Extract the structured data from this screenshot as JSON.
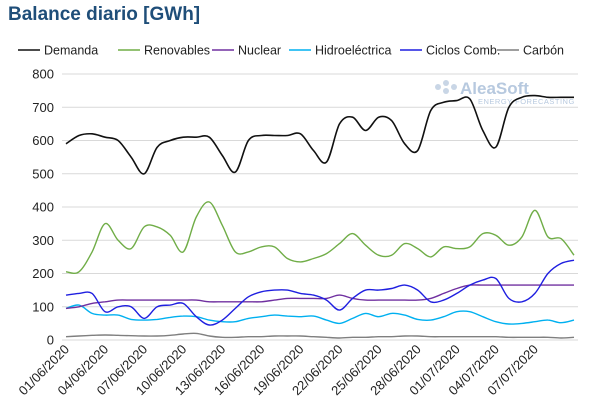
{
  "chart_data": {
    "type": "line",
    "title": "Balance diario [GWh]",
    "xlabel": "",
    "ylabel": "",
    "ylim": [
      0,
      800
    ],
    "yticks": [
      0,
      100,
      200,
      300,
      400,
      500,
      600,
      700,
      800
    ],
    "grid": true,
    "legend_position": "top",
    "x": [
      "01/06/2020",
      "02/06/2020",
      "03/06/2020",
      "04/06/2020",
      "05/06/2020",
      "06/06/2020",
      "07/06/2020",
      "08/06/2020",
      "09/06/2020",
      "10/06/2020",
      "11/06/2020",
      "12/06/2020",
      "13/06/2020",
      "14/06/2020",
      "15/06/2020",
      "16/06/2020",
      "17/06/2020",
      "18/06/2020",
      "19/06/2020",
      "20/06/2020",
      "21/06/2020",
      "22/06/2020",
      "23/06/2020",
      "24/06/2020",
      "25/06/2020",
      "26/06/2020",
      "27/06/2020",
      "28/06/2020",
      "29/06/2020",
      "30/06/2020",
      "01/07/2020",
      "02/07/2020",
      "03/07/2020",
      "04/07/2020",
      "05/07/2020",
      "06/07/2020",
      "07/07/2020",
      "08/07/2020",
      "09/07/2020",
      "10/07/2020"
    ],
    "x_tick_labels": [
      "01/06/2020",
      "04/06/2020",
      "07/06/2020",
      "10/06/2020",
      "13/06/2020",
      "16/06/2020",
      "19/06/2020",
      "22/06/2020",
      "25/06/2020",
      "28/06/2020",
      "01/07/2020",
      "04/07/2020",
      "07/07/2020"
    ],
    "series": [
      {
        "name": "Demanda",
        "color": "#111111",
        "values": [
          590,
          615,
          620,
          610,
          600,
          550,
          500,
          580,
          600,
          610,
          610,
          610,
          555,
          505,
          600,
          615,
          615,
          615,
          620,
          570,
          535,
          650,
          670,
          630,
          670,
          660,
          590,
          570,
          690,
          715,
          720,
          725,
          630,
          580,
          700,
          730,
          735,
          730,
          730,
          730
        ]
      },
      {
        "name": "Renovables",
        "color": "#70ad47",
        "values": [
          205,
          205,
          265,
          350,
          300,
          275,
          340,
          340,
          315,
          265,
          370,
          415,
          345,
          265,
          265,
          280,
          280,
          245,
          235,
          245,
          260,
          290,
          320,
          285,
          255,
          255,
          290,
          275,
          250,
          280,
          275,
          280,
          320,
          315,
          285,
          310,
          390,
          310,
          305,
          255
        ]
      },
      {
        "name": "Nuclear",
        "color": "#7030a0",
        "values": [
          95,
          100,
          110,
          115,
          120,
          120,
          120,
          120,
          120,
          120,
          120,
          115,
          115,
          115,
          115,
          115,
          120,
          125,
          125,
          125,
          125,
          135,
          125,
          120,
          120,
          120,
          120,
          120,
          125,
          140,
          155,
          165,
          165,
          165,
          165,
          165,
          165,
          165,
          165,
          165
        ]
      },
      {
        "name": "Hidroeléctrica",
        "color": "#00b0f0",
        "values": [
          95,
          105,
          80,
          75,
          75,
          62,
          60,
          62,
          68,
          72,
          70,
          60,
          55,
          55,
          65,
          70,
          75,
          72,
          70,
          72,
          60,
          50,
          65,
          80,
          70,
          80,
          75,
          62,
          60,
          70,
          85,
          85,
          70,
          55,
          48,
          50,
          55,
          60,
          52,
          60
        ]
      },
      {
        "name": "Ciclos Comb.",
        "color": "#1f1fe0",
        "values": [
          135,
          140,
          140,
          85,
          100,
          100,
          65,
          100,
          105,
          110,
          70,
          45,
          60,
          95,
          130,
          145,
          150,
          150,
          140,
          135,
          120,
          90,
          125,
          150,
          150,
          155,
          165,
          150,
          115,
          120,
          140,
          165,
          180,
          185,
          125,
          115,
          140,
          200,
          230,
          240
        ]
      },
      {
        "name": "Carbón",
        "color": "#7f7f7f",
        "values": [
          10,
          12,
          14,
          15,
          14,
          13,
          12,
          12,
          14,
          18,
          20,
          12,
          8,
          8,
          10,
          10,
          12,
          12,
          12,
          10,
          8,
          6,
          8,
          8,
          10,
          10,
          12,
          12,
          10,
          10,
          10,
          10,
          10,
          10,
          8,
          8,
          8,
          8,
          6,
          8
        ]
      }
    ],
    "watermark": {
      "name": "AleaSoft",
      "subtitle": "ENERGY FORECASTING"
    }
  }
}
